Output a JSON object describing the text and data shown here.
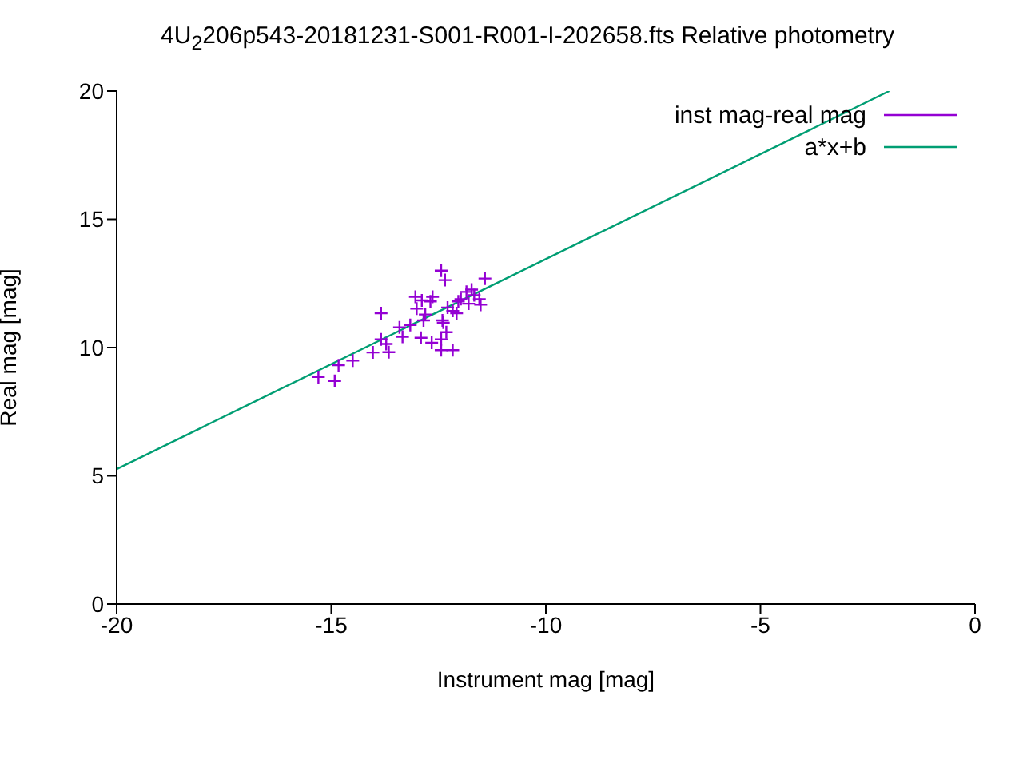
{
  "chart_data": {
    "type": "scatter",
    "title": "4U$_{2}$206p543-20181231-S001-R001-I-202658.fts Relative photometry",
    "xlabel": "Instrument mag [mag]",
    "ylabel": "Real mag [mag]",
    "xlim": [
      -20,
      0
    ],
    "xticks": [
      -20,
      -15,
      -10,
      -5,
      0
    ],
    "ylim": [
      0,
      20
    ],
    "yticks": [
      0,
      5,
      10,
      15,
      20
    ],
    "legend": "top right",
    "marker": "cross",
    "series": [
      {
        "name": "inst mag-real mag",
        "color": "#9400d3",
        "x": [
          -12.44,
          -12.35,
          -11.42,
          -13.04,
          -12.89,
          -12.64,
          -12.69,
          -13.01,
          -13.84,
          -12.81,
          -12.85,
          -12.41,
          -12.39,
          -12.29,
          -12.17,
          -12.04,
          -11.98,
          -11.85,
          -11.73,
          -11.67,
          -11.55,
          -11.52,
          -11.8,
          -12.08,
          -13.41,
          -13.16,
          -13.84,
          -13.72,
          -13.34,
          -12.91,
          -12.66,
          -12.44,
          -12.32,
          -13.66,
          -14.03,
          -12.44,
          -12.17,
          -14.5,
          -14.83,
          -15.3,
          -14.92
        ],
        "values": [
          13.0,
          12.63,
          12.69,
          11.98,
          11.84,
          11.98,
          11.8,
          11.52,
          11.34,
          11.29,
          11.06,
          11.06,
          10.97,
          11.56,
          11.43,
          11.8,
          11.89,
          12.17,
          12.26,
          12.04,
          11.89,
          11.67,
          11.71,
          11.34,
          10.79,
          10.88,
          10.32,
          10.14,
          10.42,
          10.38,
          10.19,
          10.32,
          10.6,
          9.82,
          9.81,
          9.9,
          9.9,
          9.49,
          9.31,
          8.85,
          8.7
        ]
      },
      {
        "name": "a*x+b",
        "type": "line",
        "color": "#009e73",
        "marker": "none",
        "x": [
          -20,
          -2
        ],
        "values": [
          5.26,
          20
        ]
      }
    ]
  }
}
